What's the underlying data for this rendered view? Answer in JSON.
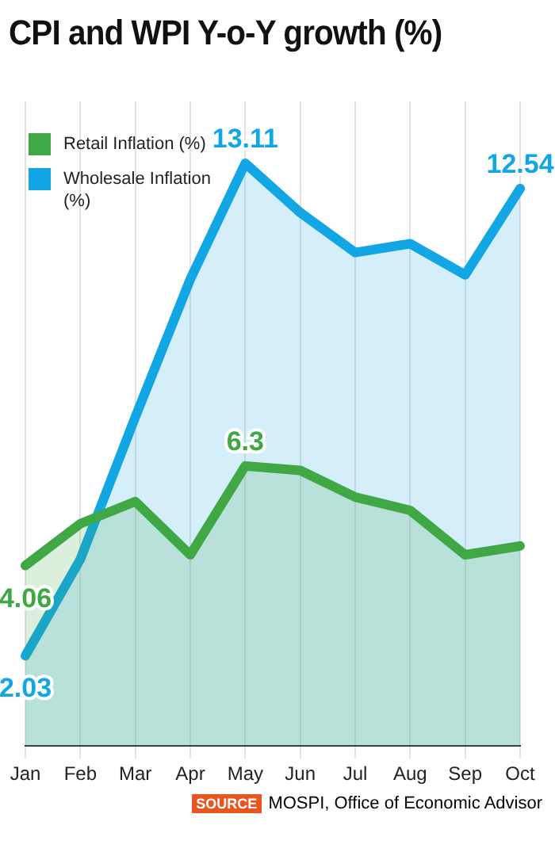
{
  "chart_data": {
    "type": "area",
    "title": "CPI and WPI Y-o-Y growth (%)",
    "categories": [
      "Jan",
      "Feb",
      "Mar",
      "Apr",
      "May",
      "Jun",
      "Jul",
      "Aug",
      "Sep",
      "Oct"
    ],
    "series": [
      {
        "name": "Retail Inflation (%)",
        "color": "#3fa845",
        "values": [
          4.06,
          5.0,
          5.5,
          4.3,
          6.3,
          6.2,
          5.6,
          5.3,
          4.3,
          4.5
        ],
        "value_labels": [
          "4.06",
          null,
          null,
          null,
          "6.3",
          null,
          null,
          null,
          null,
          null
        ]
      },
      {
        "name": "Wholesale Inflation (%)",
        "color": "#12a6e4",
        "values": [
          2.03,
          4.2,
          7.4,
          10.5,
          13.11,
          12.0,
          11.1,
          11.3,
          10.6,
          12.54
        ],
        "value_labels": [
          "2.03",
          null,
          null,
          null,
          "13.11",
          null,
          null,
          null,
          null,
          "12.54"
        ]
      }
    ],
    "ylim": [
      0,
      14.5
    ],
    "tick_labels": "x",
    "grid": "x",
    "legend": "top left",
    "annotations": [
      "SOURCE MOSPI, Office of Economic Advisor"
    ]
  }
}
